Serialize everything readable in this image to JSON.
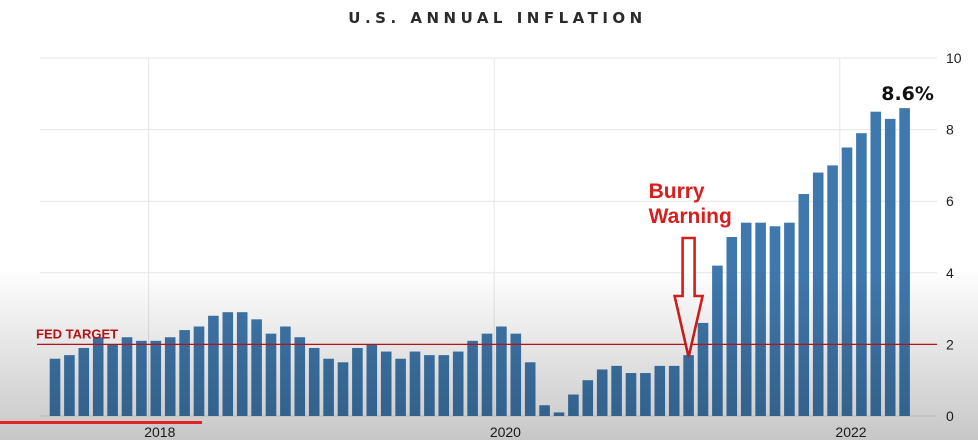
{
  "chart_data": {
    "type": "bar",
    "title": "U.S. ANNUAL INFLATION",
    "xlabel": "",
    "ylabel": "",
    "ylim": [
      0,
      10
    ],
    "yticks": [
      0,
      2,
      4,
      6,
      8,
      10
    ],
    "x_tick_labels": [
      "2018",
      "2020",
      "2022"
    ],
    "grid": true,
    "bar_color": "#3f78ad",
    "categories": [
      "2017-06",
      "2017-07",
      "2017-08",
      "2017-09",
      "2017-10",
      "2017-11",
      "2017-12",
      "2018-01",
      "2018-02",
      "2018-03",
      "2018-04",
      "2018-05",
      "2018-06",
      "2018-07",
      "2018-08",
      "2018-09",
      "2018-10",
      "2018-11",
      "2018-12",
      "2019-01",
      "2019-02",
      "2019-03",
      "2019-04",
      "2019-05",
      "2019-06",
      "2019-07",
      "2019-08",
      "2019-09",
      "2019-10",
      "2019-11",
      "2019-12",
      "2020-01",
      "2020-02",
      "2020-03",
      "2020-04",
      "2020-05",
      "2020-06",
      "2020-07",
      "2020-08",
      "2020-09",
      "2020-10",
      "2020-11",
      "2020-12",
      "2021-01",
      "2021-02",
      "2021-03",
      "2021-04",
      "2021-05",
      "2021-06",
      "2021-07",
      "2021-08",
      "2021-09",
      "2021-10",
      "2021-11",
      "2021-12",
      "2022-01",
      "2022-02",
      "2022-03",
      "2022-04",
      "2022-05"
    ],
    "values": [
      1.6,
      1.7,
      1.9,
      2.2,
      2.0,
      2.2,
      2.1,
      2.1,
      2.2,
      2.4,
      2.5,
      2.8,
      2.9,
      2.9,
      2.7,
      2.3,
      2.5,
      2.2,
      1.9,
      1.6,
      1.5,
      1.9,
      2.0,
      1.8,
      1.6,
      1.8,
      1.7,
      1.7,
      1.8,
      2.1,
      2.3,
      2.5,
      2.3,
      1.5,
      0.3,
      0.1,
      0.6,
      1.0,
      1.3,
      1.4,
      1.2,
      1.2,
      1.4,
      1.4,
      1.7,
      2.6,
      4.2,
      5.0,
      5.4,
      5.4,
      5.3,
      5.4,
      6.2,
      6.8,
      7.0,
      7.5,
      7.9,
      8.5,
      8.3,
      8.6
    ],
    "reference_line": {
      "label": "FED TARGET",
      "value": 2,
      "color": "#c8141a"
    },
    "annotations": {
      "latest_value": "8.6%",
      "warning_line1": "Burry",
      "warning_line2": "Warning",
      "warning_category": "2021-02"
    }
  }
}
